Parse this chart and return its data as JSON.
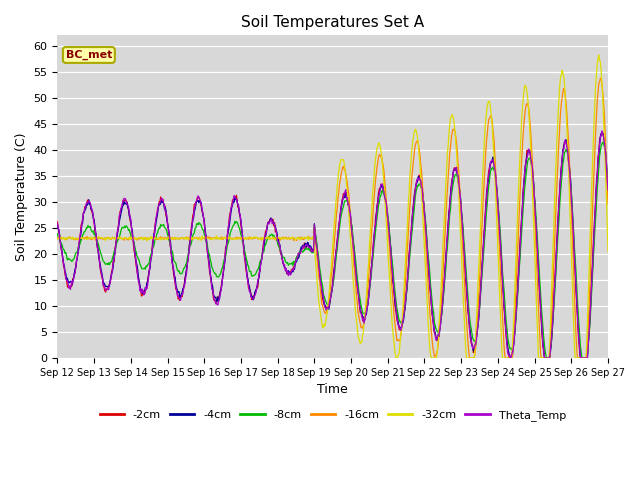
{
  "title": "Soil Temperatures Set A",
  "xlabel": "Time",
  "ylabel": "Soil Temperature (C)",
  "ylim": [
    0,
    62
  ],
  "yticks": [
    0,
    5,
    10,
    15,
    20,
    25,
    30,
    35,
    40,
    45,
    50,
    55,
    60
  ],
  "bg_color": "#d8d8d8",
  "legend_label": "BC_met",
  "series_colors": {
    "-2cm": "#dd0000",
    "-4cm": "#000099",
    "-8cm": "#00bb00",
    "-16cm": "#ff8800",
    "-32cm": "#dddd00",
    "Theta_Temp": "#aa00cc"
  },
  "series_order": [
    "-2cm",
    "-4cm",
    "-8cm",
    "-16cm",
    "-32cm",
    "Theta_Temp"
  ],
  "n_days": 15,
  "pts_per_day": 48
}
